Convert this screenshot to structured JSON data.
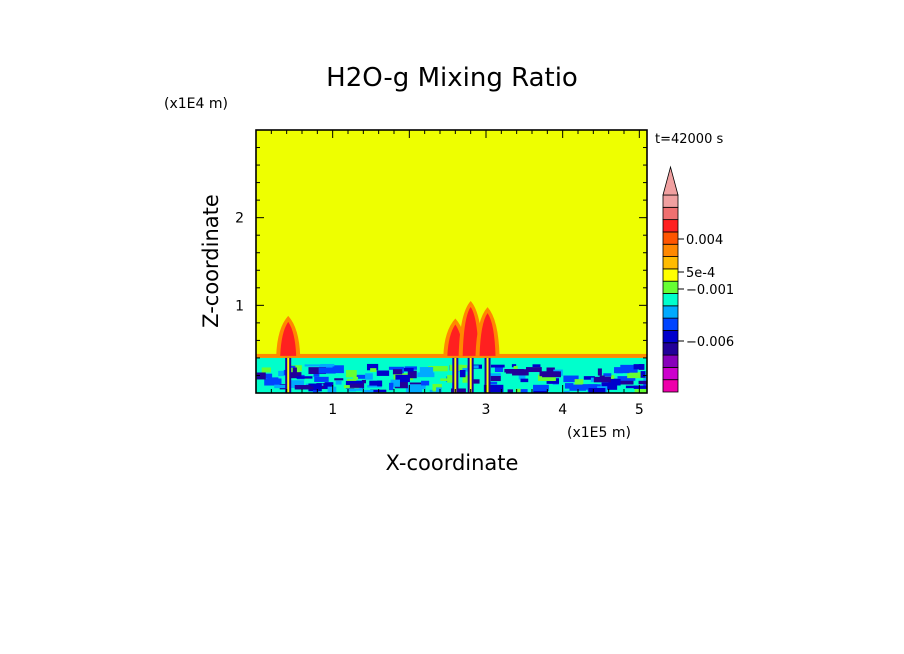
{
  "chart_data": {
    "type": "heatmap",
    "title": "H2O-g Mixing Ratio",
    "xlabel": "X-coordinate",
    "ylabel": "Z-coordinate",
    "x_unit": "(x1E5 m)",
    "y_unit": "(x1E4 m)",
    "time_label": "t=42000 s",
    "xlim": [
      0,
      5.1
    ],
    "ylim": [
      0,
      3.0
    ],
    "x_ticks": [
      1,
      2,
      3,
      4,
      5
    ],
    "x_tick_labels": [
      "1",
      "2",
      "3",
      "4",
      "5"
    ],
    "y_ticks": [
      1,
      2
    ],
    "y_tick_labels": [
      "1",
      "2"
    ],
    "background_value_color": "#eeff00",
    "boundary_layer_top_z": 0.4,
    "plumes": [
      {
        "x_center": 0.42,
        "top_z": 0.88,
        "color": "#ff2020"
      },
      {
        "x_center": 2.6,
        "top_z": 0.85,
        "color": "#ff2020"
      },
      {
        "x_center": 2.8,
        "top_z": 1.05,
        "color": "#ff2020"
      },
      {
        "x_center": 3.02,
        "top_z": 0.98,
        "color": "#ff2020"
      }
    ],
    "colorbar": {
      "colors": [
        "#ee00aa",
        "#cc00cc",
        "#8800bb",
        "#220099",
        "#0000cc",
        "#0044ff",
        "#00aaff",
        "#00ffcc",
        "#66ff33",
        "#ffff00",
        "#ffbb00",
        "#ff8800",
        "#ff5500",
        "#ff2020",
        "#f07070",
        "#f0a0a0"
      ],
      "extend": "max",
      "labels": [
        {
          "text": "0.004",
          "level": 0.004
        },
        {
          "text": "5e-4",
          "level": 0.0005
        },
        {
          "text": "−0.001",
          "level": -0.001
        },
        {
          "text": "−0.006",
          "level": -0.006
        }
      ]
    }
  }
}
